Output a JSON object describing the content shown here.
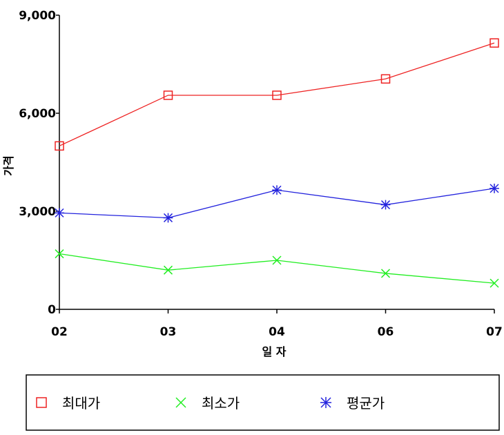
{
  "chart_data": {
    "type": "line",
    "categories": [
      "02",
      "03",
      "04",
      "06",
      "07"
    ],
    "series": [
      {
        "name": "최대가",
        "values": [
          5000,
          6550,
          6550,
          7050,
          8150
        ],
        "color": "#ee2222",
        "marker": "square"
      },
      {
        "name": "최소가",
        "values": [
          1700,
          1200,
          1500,
          1100,
          800
        ],
        "color": "#22ee22",
        "marker": "x"
      },
      {
        "name": "평균가",
        "values": [
          2950,
          2800,
          3650,
          3200,
          3700
        ],
        "color": "#2222dd",
        "marker": "star"
      }
    ],
    "title": "",
    "xlabel": "일 자",
    "ylabel": "가격",
    "ylim": [
      0,
      9000
    ],
    "yticks": [
      0,
      3000,
      6000,
      9000
    ],
    "ytick_labels": [
      "0",
      "3,000",
      "6,000",
      "9,000"
    ],
    "grid": false,
    "legend_position": "bottom"
  }
}
